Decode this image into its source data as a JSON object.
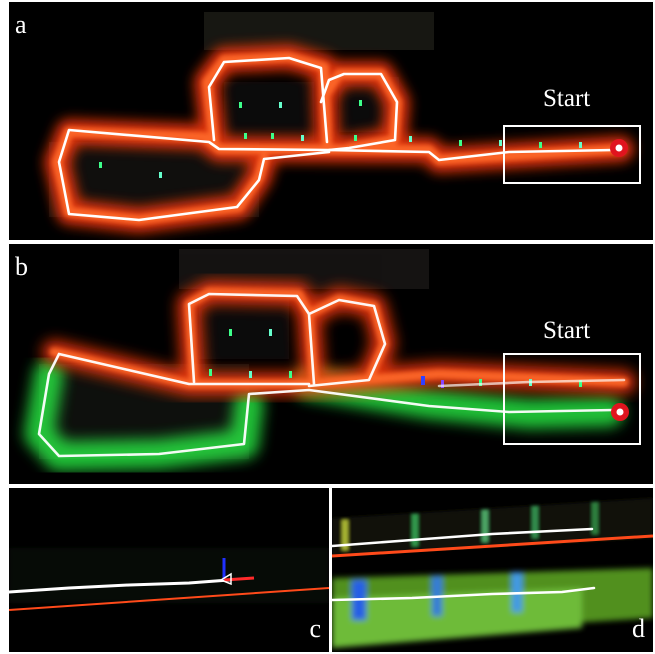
{
  "panels": {
    "a": {
      "letter": "a",
      "start_label": "Start"
    },
    "b": {
      "letter": "b",
      "start_label": "Start"
    },
    "c": {
      "letter": "c"
    },
    "d": {
      "letter": "d"
    }
  },
  "colors": {
    "background": "#000000",
    "trajectory": "#ffffff",
    "map_orange": "#ff4a1a",
    "map_green": "#39ff5a",
    "start_marker": "#e0141e",
    "start_box": "#ffffff"
  }
}
